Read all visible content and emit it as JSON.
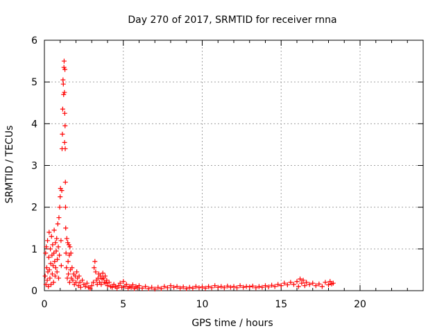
{
  "chart_data": {
    "type": "scatter",
    "title": "Day 270 of 2017, SRMTID for receiver rnna",
    "xlabel": "GPS time / hours",
    "ylabel": "SRMTID / TECUs",
    "xlim": [
      0,
      24
    ],
    "ylim": [
      0,
      6
    ],
    "xticks": [
      0,
      5,
      10,
      15,
      20
    ],
    "yticks": [
      0,
      1,
      2,
      3,
      4,
      5,
      6
    ],
    "grid": true,
    "marker": "+",
    "series": [
      {
        "name": "SRMTID",
        "color": "#ff0000",
        "points": [
          [
            0.05,
            0.35
          ],
          [
            0.08,
            0.9
          ],
          [
            0.1,
            0.15
          ],
          [
            0.12,
            1.05
          ],
          [
            0.15,
            0.55
          ],
          [
            0.18,
            0.25
          ],
          [
            0.2,
            1.2
          ],
          [
            0.22,
            0.45
          ],
          [
            0.25,
            0.1
          ],
          [
            0.28,
            0.8
          ],
          [
            0.3,
            1.4
          ],
          [
            0.32,
            0.5
          ],
          [
            0.35,
            0.3
          ],
          [
            0.38,
            1.0
          ],
          [
            0.4,
            0.65
          ],
          [
            0.42,
            0.15
          ],
          [
            0.45,
            1.3
          ],
          [
            0.48,
            0.85
          ],
          [
            0.5,
            0.4
          ],
          [
            0.52,
            1.1
          ],
          [
            0.55,
            0.6
          ],
          [
            0.58,
            0.2
          ],
          [
            0.6,
            0.9
          ],
          [
            0.62,
            1.45
          ],
          [
            0.65,
            0.7
          ],
          [
            0.68,
            0.35
          ],
          [
            0.7,
            1.15
          ],
          [
            0.72,
            0.55
          ],
          [
            0.75,
            0.95
          ],
          [
            0.78,
            1.25
          ],
          [
            0.8,
            0.45
          ],
          [
            0.82,
            0.75
          ],
          [
            0.85,
            1.6
          ],
          [
            0.88,
            1.05
          ],
          [
            0.9,
            0.3
          ],
          [
            0.92,
            1.75
          ],
          [
            0.95,
            0.85
          ],
          [
            0.97,
            2.0
          ],
          [
            1.0,
            2.25
          ],
          [
            1.02,
            2.45
          ],
          [
            1.05,
            1.2
          ],
          [
            1.07,
            0.6
          ],
          [
            1.1,
            2.4
          ],
          [
            1.12,
            3.4
          ],
          [
            1.14,
            3.75
          ],
          [
            1.16,
            4.35
          ],
          [
            1.18,
            5.05
          ],
          [
            1.2,
            4.95
          ],
          [
            1.22,
            4.7
          ],
          [
            1.24,
            5.35
          ],
          [
            1.25,
            5.5
          ],
          [
            1.27,
            4.75
          ],
          [
            1.28,
            3.55
          ],
          [
            1.29,
            4.25
          ],
          [
            1.3,
            5.3
          ],
          [
            1.31,
            3.95
          ],
          [
            1.32,
            3.4
          ],
          [
            1.33,
            2.6
          ],
          [
            1.34,
            2.0
          ],
          [
            1.35,
            1.5
          ],
          [
            1.37,
            0.9
          ],
          [
            1.4,
            0.55
          ],
          [
            1.42,
            1.25
          ],
          [
            1.45,
            0.3
          ],
          [
            1.48,
            1.15
          ],
          [
            1.5,
            0.7
          ],
          [
            1.52,
            0.4
          ],
          [
            1.55,
            1.1
          ],
          [
            1.58,
            0.85
          ],
          [
            1.6,
            0.2
          ],
          [
            1.62,
            1.05
          ],
          [
            1.65,
            0.5
          ],
          [
            1.68,
            0.9
          ],
          [
            1.7,
            0.3
          ],
          [
            1.75,
            0.55
          ],
          [
            1.8,
            0.25
          ],
          [
            1.85,
            0.4
          ],
          [
            1.9,
            0.15
          ],
          [
            1.95,
            0.35
          ],
          [
            2.0,
            0.2
          ],
          [
            2.05,
            0.45
          ],
          [
            2.1,
            0.3
          ],
          [
            2.15,
            0.12
          ],
          [
            2.2,
            0.35
          ],
          [
            2.25,
            0.2
          ],
          [
            2.3,
            0.08
          ],
          [
            2.4,
            0.25
          ],
          [
            2.5,
            0.15
          ],
          [
            2.6,
            0.1
          ],
          [
            2.7,
            0.18
          ],
          [
            2.8,
            0.08
          ],
          [
            2.9,
            0.05
          ],
          [
            3.0,
            0.12
          ],
          [
            3.1,
            0.2
          ],
          [
            3.15,
            0.55
          ],
          [
            3.2,
            0.7
          ],
          [
            3.25,
            0.45
          ],
          [
            3.3,
            0.25
          ],
          [
            3.35,
            0.15
          ],
          [
            3.4,
            0.3
          ],
          [
            3.45,
            0.4
          ],
          [
            3.5,
            0.2
          ],
          [
            3.55,
            0.35
          ],
          [
            3.6,
            0.15
          ],
          [
            3.65,
            0.28
          ],
          [
            3.7,
            0.42
          ],
          [
            3.75,
            0.3
          ],
          [
            3.8,
            0.2
          ],
          [
            3.85,
            0.35
          ],
          [
            3.9,
            0.18
          ],
          [
            3.95,
            0.25
          ],
          [
            4.0,
            0.12
          ],
          [
            4.1,
            0.2
          ],
          [
            4.2,
            0.1
          ],
          [
            4.3,
            0.08
          ],
          [
            4.4,
            0.15
          ],
          [
            4.5,
            0.1
          ],
          [
            4.6,
            0.06
          ],
          [
            4.7,
            0.12
          ],
          [
            4.8,
            0.18
          ],
          [
            4.9,
            0.08
          ],
          [
            5.0,
            0.22
          ],
          [
            5.1,
            0.1
          ],
          [
            5.2,
            0.15
          ],
          [
            5.3,
            0.06
          ],
          [
            5.4,
            0.1
          ],
          [
            5.5,
            0.08
          ],
          [
            5.6,
            0.14
          ],
          [
            5.7,
            0.05
          ],
          [
            5.8,
            0.1
          ],
          [
            5.9,
            0.07
          ],
          [
            6.0,
            0.12
          ],
          [
            6.2,
            0.06
          ],
          [
            6.4,
            0.1
          ],
          [
            6.6,
            0.05
          ],
          [
            6.8,
            0.08
          ],
          [
            7.0,
            0.04
          ],
          [
            7.2,
            0.08
          ],
          [
            7.4,
            0.05
          ],
          [
            7.6,
            0.1
          ],
          [
            7.8,
            0.07
          ],
          [
            8.0,
            0.12
          ],
          [
            8.2,
            0.08
          ],
          [
            8.4,
            0.1
          ],
          [
            8.6,
            0.06
          ],
          [
            8.8,
            0.09
          ],
          [
            9.0,
            0.05
          ],
          [
            9.2,
            0.08
          ],
          [
            9.4,
            0.06
          ],
          [
            9.6,
            0.1
          ],
          [
            9.8,
            0.07
          ],
          [
            10.0,
            0.09
          ],
          [
            10.2,
            0.06
          ],
          [
            10.4,
            0.1
          ],
          [
            10.6,
            0.07
          ],
          [
            10.8,
            0.12
          ],
          [
            11.0,
            0.08
          ],
          [
            11.2,
            0.1
          ],
          [
            11.4,
            0.07
          ],
          [
            11.6,
            0.11
          ],
          [
            11.8,
            0.08
          ],
          [
            12.0,
            0.1
          ],
          [
            12.2,
            0.07
          ],
          [
            12.4,
            0.12
          ],
          [
            12.6,
            0.08
          ],
          [
            12.8,
            0.1
          ],
          [
            13.0,
            0.09
          ],
          [
            13.2,
            0.11
          ],
          [
            13.4,
            0.07
          ],
          [
            13.6,
            0.1
          ],
          [
            13.8,
            0.08
          ],
          [
            14.0,
            0.12
          ],
          [
            14.2,
            0.09
          ],
          [
            14.4,
            0.13
          ],
          [
            14.6,
            0.1
          ],
          [
            14.8,
            0.15
          ],
          [
            15.0,
            0.12
          ],
          [
            15.2,
            0.18
          ],
          [
            15.4,
            0.14
          ],
          [
            15.6,
            0.2
          ],
          [
            15.8,
            0.15
          ],
          [
            16.0,
            0.22
          ],
          [
            16.1,
            0.1
          ],
          [
            16.2,
            0.28
          ],
          [
            16.3,
            0.18
          ],
          [
            16.4,
            0.25
          ],
          [
            16.5,
            0.12
          ],
          [
            16.6,
            0.2
          ],
          [
            16.8,
            0.15
          ],
          [
            17.0,
            0.18
          ],
          [
            17.2,
            0.12
          ],
          [
            17.4,
            0.16
          ],
          [
            17.6,
            0.1
          ],
          [
            17.8,
            0.2
          ],
          [
            18.0,
            0.14
          ],
          [
            18.1,
            0.22
          ],
          [
            18.2,
            0.16
          ],
          [
            18.3,
            0.18
          ]
        ]
      }
    ]
  }
}
